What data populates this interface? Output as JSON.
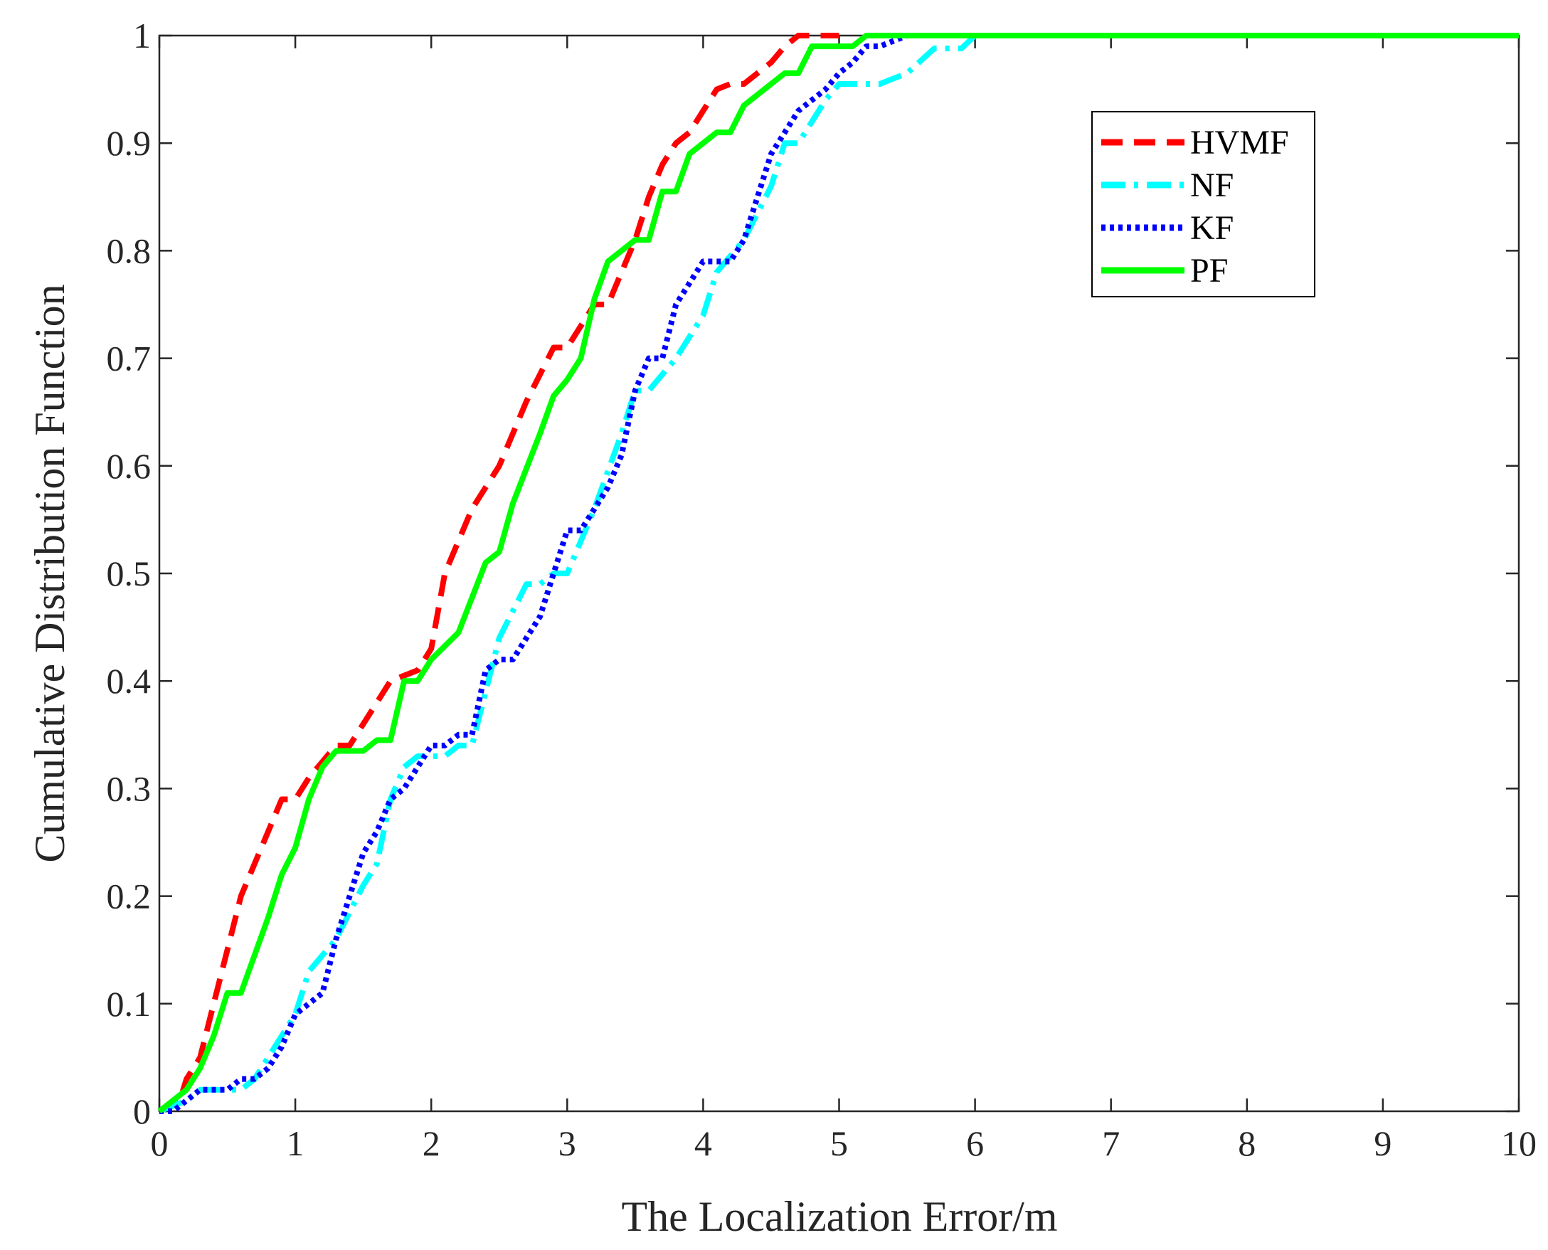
{
  "chart_data": {
    "type": "line",
    "title": "",
    "xlabel": "The Localization Error/m",
    "ylabel": "Cumulative Distribution Function",
    "xlim": [
      0,
      10
    ],
    "ylim": [
      0,
      1
    ],
    "x_ticks": [
      0,
      1,
      2,
      3,
      4,
      5,
      6,
      7,
      8,
      9,
      10
    ],
    "y_ticks": [
      0,
      0.1,
      0.2,
      0.3,
      0.4,
      0.5,
      0.6,
      0.7,
      0.8,
      0.9,
      1
    ],
    "x_tick_labels": [
      "0",
      "1",
      "2",
      "3",
      "4",
      "5",
      "6",
      "7",
      "8",
      "9",
      "10"
    ],
    "y_tick_labels": [
      "0",
      "0.1",
      "0.2",
      "0.3",
      "0.4",
      "0.5",
      "0.6",
      "0.7",
      "0.8",
      "0.9",
      "1"
    ],
    "grid": false,
    "legend_position": "top-right",
    "series": [
      {
        "name": "HVMF",
        "color": "#ff0000",
        "style": "dashed",
        "x": [
          0,
          0.15,
          0.2,
          0.3,
          0.4,
          0.5,
          0.6,
          0.8,
          0.9,
          1.0,
          1.1,
          1.3,
          1.4,
          1.5,
          1.7,
          1.9,
          2.0,
          2.1,
          2.3,
          2.5,
          2.7,
          2.9,
          3.0,
          3.2,
          3.3,
          3.4,
          3.5,
          3.6,
          3.7,
          3.8,
          3.9,
          4.0,
          4.1,
          4.2,
          4.3,
          4.4,
          4.5,
          4.6,
          4.7,
          5.0
        ],
        "y": [
          0,
          0.01,
          0.03,
          0.05,
          0.1,
          0.15,
          0.2,
          0.26,
          0.29,
          0.29,
          0.31,
          0.34,
          0.34,
          0.36,
          0.4,
          0.41,
          0.43,
          0.5,
          0.56,
          0.6,
          0.66,
          0.71,
          0.71,
          0.75,
          0.75,
          0.78,
          0.81,
          0.85,
          0.88,
          0.9,
          0.91,
          0.93,
          0.95,
          0.955,
          0.955,
          0.965,
          0.975,
          0.99,
          1.0,
          1.0
        ]
      },
      {
        "name": "NF",
        "color": "#00ffff",
        "style": "dash-dot",
        "x": [
          0,
          0.2,
          0.3,
          0.4,
          0.6,
          0.7,
          0.8,
          1.0,
          1.1,
          1.3,
          1.5,
          1.6,
          1.7,
          1.8,
          1.9,
          2.0,
          2.1,
          2.2,
          2.3,
          2.5,
          2.7,
          2.8,
          2.9,
          3.0,
          3.2,
          3.4,
          3.5,
          3.6,
          3.8,
          4.0,
          4.1,
          4.3,
          4.5,
          4.6,
          4.7,
          4.8,
          4.9,
          5.0,
          5.3,
          5.5,
          5.7,
          5.9,
          6.0
        ],
        "y": [
          0,
          0.01,
          0.02,
          0.02,
          0.02,
          0.03,
          0.05,
          0.09,
          0.13,
          0.16,
          0.21,
          0.23,
          0.29,
          0.32,
          0.33,
          0.33,
          0.33,
          0.34,
          0.34,
          0.44,
          0.49,
          0.49,
          0.5,
          0.5,
          0.56,
          0.63,
          0.67,
          0.67,
          0.7,
          0.74,
          0.78,
          0.81,
          0.86,
          0.9,
          0.9,
          0.92,
          0.94,
          0.955,
          0.955,
          0.965,
          0.988,
          0.988,
          1.0
        ]
      },
      {
        "name": "KF",
        "color": "#0000ff",
        "style": "dotted",
        "x": [
          0,
          0.1,
          0.2,
          0.3,
          0.4,
          0.5,
          0.6,
          0.7,
          0.8,
          0.9,
          1.0,
          1.1,
          1.2,
          1.3,
          1.4,
          1.5,
          1.6,
          1.7,
          1.8,
          1.9,
          2.0,
          2.1,
          2.2,
          2.3,
          2.4,
          2.5,
          2.6,
          2.8,
          2.9,
          3.0,
          3.1,
          3.2,
          3.3,
          3.4,
          3.5,
          3.6,
          3.7,
          3.8,
          3.9,
          4.0,
          4.1,
          4.2,
          4.3,
          4.4,
          4.5,
          4.6,
          4.7,
          4.8,
          4.9,
          5.0,
          5.1,
          5.2,
          5.3,
          5.5
        ],
        "y": [
          0,
          0,
          0.01,
          0.02,
          0.02,
          0.02,
          0.03,
          0.03,
          0.04,
          0.06,
          0.09,
          0.1,
          0.11,
          0.16,
          0.2,
          0.24,
          0.26,
          0.29,
          0.3,
          0.32,
          0.34,
          0.34,
          0.35,
          0.35,
          0.41,
          0.42,
          0.42,
          0.46,
          0.5,
          0.54,
          0.54,
          0.56,
          0.58,
          0.61,
          0.67,
          0.7,
          0.7,
          0.75,
          0.77,
          0.79,
          0.79,
          0.79,
          0.81,
          0.85,
          0.89,
          0.91,
          0.93,
          0.94,
          0.95,
          0.965,
          0.975,
          0.99,
          0.99,
          1.0
        ]
      },
      {
        "name": "PF",
        "color": "#00ff00",
        "style": "solid",
        "x": [
          0,
          0.2,
          0.3,
          0.4,
          0.5,
          0.6,
          0.8,
          0.9,
          1.0,
          1.1,
          1.2,
          1.3,
          1.5,
          1.6,
          1.7,
          1.8,
          1.9,
          2.0,
          2.2,
          2.4,
          2.5,
          2.6,
          2.8,
          2.9,
          3.0,
          3.1,
          3.2,
          3.3,
          3.5,
          3.6,
          3.7,
          3.8,
          3.9,
          4.1,
          4.2,
          4.3,
          4.5,
          4.6,
          4.7,
          4.8,
          5.0,
          5.1,
          5.2,
          6.0,
          10.0
        ],
        "y": [
          0,
          0.02,
          0.04,
          0.07,
          0.11,
          0.11,
          0.18,
          0.22,
          0.245,
          0.29,
          0.32,
          0.335,
          0.335,
          0.345,
          0.345,
          0.4,
          0.4,
          0.42,
          0.445,
          0.51,
          0.52,
          0.565,
          0.63,
          0.665,
          0.68,
          0.7,
          0.755,
          0.79,
          0.81,
          0.81,
          0.855,
          0.855,
          0.89,
          0.91,
          0.91,
          0.935,
          0.955,
          0.965,
          0.965,
          0.99,
          0.99,
          0.99,
          1.0,
          1.0,
          1.0
        ]
      }
    ]
  }
}
